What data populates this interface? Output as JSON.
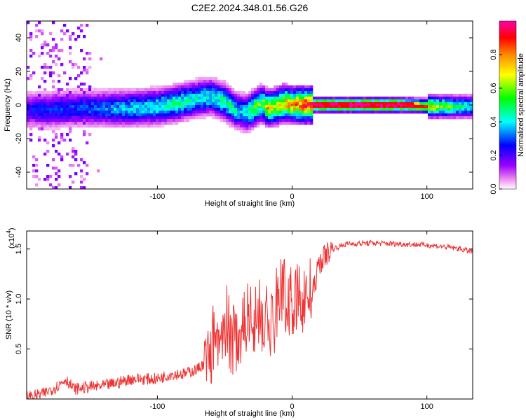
{
  "figure": {
    "title": "C2E2.2024.348.01.56.G26"
  },
  "chart_data": [
    {
      "type": "heatmap",
      "xlabel": "Height of straight line (km)",
      "ylabel": "Frequency (Hz)",
      "xlim": [
        -197,
        134
      ],
      "ylim": [
        -50,
        50
      ],
      "x_ticks": [
        -100,
        0,
        100
      ],
      "y_ticks": [
        -40,
        -20,
        0,
        20,
        40
      ],
      "grid": false,
      "colorbar": {
        "label": "Normalized spectral amplitude",
        "range": [
          0,
          1
        ],
        "ticks": [
          "0.0",
          "0.2",
          "0.4",
          "0.6",
          "0.8"
        ],
        "tick_values": [
          0,
          0.2,
          0.4,
          0.6,
          0.8
        ],
        "colors": [
          "#ffffff",
          "#ee88ee",
          "#9900ff",
          "#0000ff",
          "#00ffff",
          "#00ff00",
          "#ffff00",
          "#ff8800",
          "#ff0000",
          "#ff00aa"
        ]
      },
      "ridge": {
        "x": [
          -197,
          -180,
          -160,
          -140,
          -120,
          -100,
          -85,
          -70,
          -60,
          -50,
          -42,
          -38,
          -34,
          -28,
          -22,
          -18,
          -12,
          -6,
          0,
          8,
          15,
          40,
          80,
          110,
          134
        ],
        "frequency": [
          -3,
          -3,
          -2,
          -2,
          -2,
          -1,
          1,
          4,
          5,
          2,
          -3,
          -4,
          -5,
          -2,
          1,
          -2,
          -1,
          1,
          0,
          0,
          0,
          0,
          0,
          -1,
          -1
        ],
        "amplitude": [
          0.25,
          0.3,
          0.3,
          0.35,
          0.4,
          0.45,
          0.5,
          0.45,
          0.45,
          0.5,
          0.45,
          0.4,
          0.45,
          0.6,
          0.6,
          0.7,
          0.7,
          0.75,
          0.8,
          0.85,
          0.95,
          1.0,
          1.0,
          0.6,
          0.45
        ]
      }
    },
    {
      "type": "line",
      "xlabel": "Height of straight line (km)",
      "ylabel": "SNR (10 * v/v)",
      "y_multiplier": "(x10",
      "y_multiplier_exp": "4",
      "y_multiplier_close": ")",
      "xlim": [
        -197,
        134
      ],
      "ylim": [
        0,
        1.68
      ],
      "x_ticks": [
        -100,
        0,
        100
      ],
      "y_ticks": [
        0.5,
        1.0,
        1.5
      ],
      "y_tick_labels": [
        "0.5",
        "1.0",
        "1.5"
      ],
      "grid": false,
      "color": "#ee3333",
      "series": [
        {
          "x": [
            -197,
            -185,
            -175,
            -168,
            -162,
            -150,
            -140,
            -130,
            -120,
            -110,
            -100,
            -90,
            -80,
            -70,
            -62,
            -58,
            -52,
            -46,
            -40,
            -36,
            -32,
            -28,
            -24,
            -20,
            -16,
            -12,
            -8,
            -4,
            0,
            4,
            8,
            12,
            16,
            20,
            25,
            30,
            40,
            60,
            80,
            100,
            115,
            125,
            134
          ],
          "values": [
            0.02,
            0.05,
            0.12,
            0.2,
            0.1,
            0.12,
            0.13,
            0.16,
            0.2,
            0.2,
            0.2,
            0.25,
            0.25,
            0.3,
            0.4,
            0.55,
            0.5,
            0.55,
            0.65,
            0.7,
            0.9,
            0.8,
            0.8,
            0.8,
            0.7,
            0.95,
            1.1,
            1.0,
            0.95,
            1.0,
            1.0,
            1.05,
            1.1,
            1.35,
            1.45,
            1.5,
            1.55,
            1.56,
            1.55,
            1.54,
            1.52,
            1.5,
            1.47
          ]
        }
      ]
    }
  ]
}
